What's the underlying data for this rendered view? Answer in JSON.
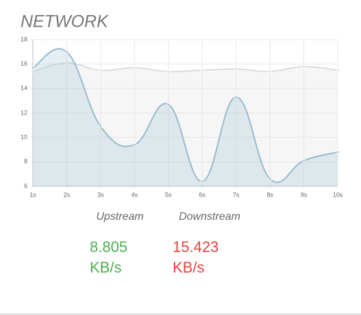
{
  "chart_data": {
    "type": "line",
    "title": "NETWORK",
    "categories": [
      "1s",
      "2s",
      "3s",
      "4s",
      "5s",
      "6s",
      "7s",
      "8s",
      "9s",
      "10s"
    ],
    "series": [
      {
        "name": "Upstream",
        "color": "#97bbcd",
        "values": [
          15.7,
          17.0,
          10.9,
          9.4,
          12.7,
          6.4,
          13.3,
          6.6,
          8.1,
          8.8
        ]
      },
      {
        "name": "Downstream",
        "color": "#dcdcdc",
        "values": [
          15.4,
          16.1,
          15.5,
          15.7,
          15.4,
          15.5,
          15.6,
          15.4,
          15.8,
          15.5
        ]
      }
    ],
    "ylim": [
      6,
      18
    ],
    "yticks": [
      6,
      8,
      10,
      12,
      14,
      16,
      18
    ],
    "grid": true
  },
  "stats": [
    {
      "value": 8.805,
      "unit": "KB/s",
      "color": "#4caf50"
    },
    {
      "value": 15.423,
      "unit": "KB/s",
      "color": "#e8423f"
    }
  ]
}
